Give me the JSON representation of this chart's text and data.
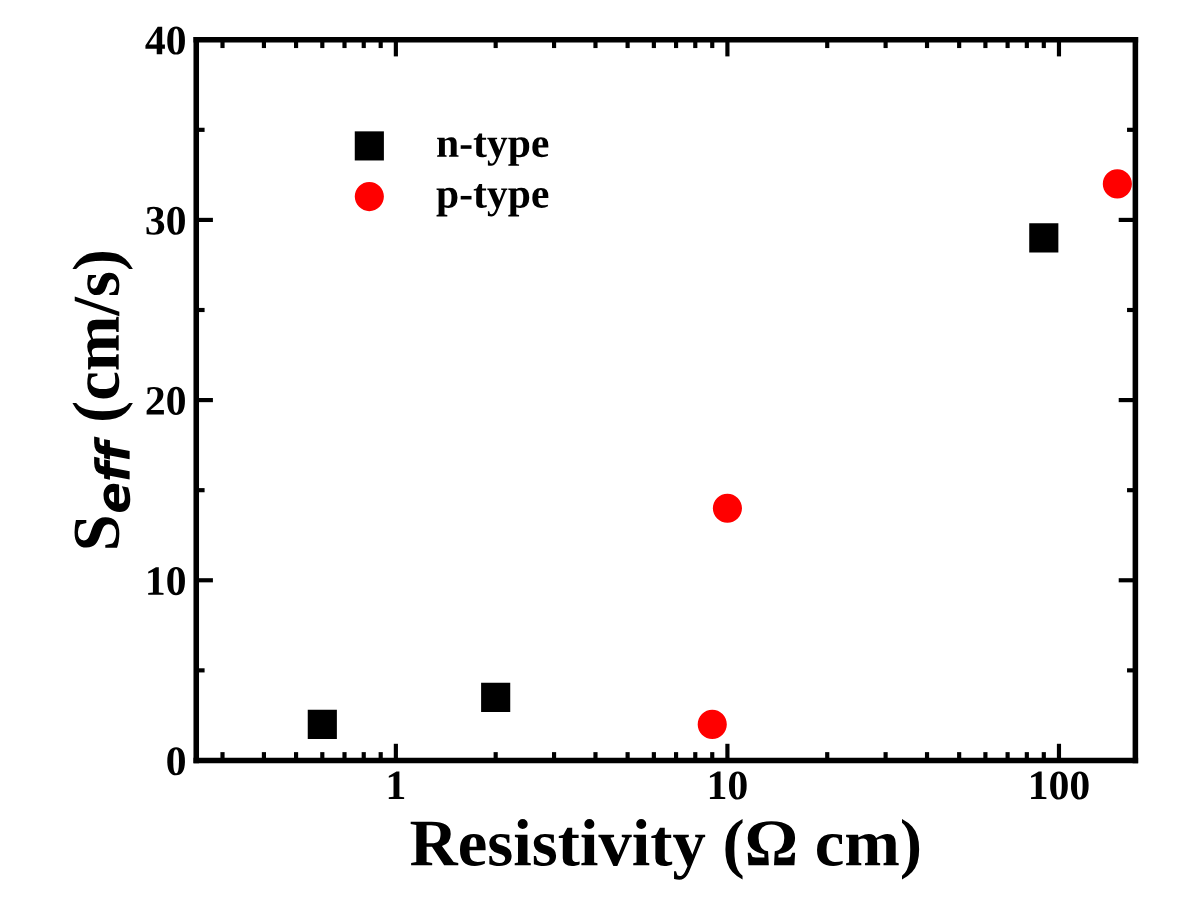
{
  "chart_data": {
    "type": "scatter",
    "xlabel": "Resistivity (Ω cm)",
    "ylabel": "S$_{eff}$ (cm/s)",
    "log": "x",
    "xlim": [
      0.25,
      170
    ],
    "xticks": [
      1,
      10,
      100
    ],
    "ylim": [
      0,
      40
    ],
    "yticks": [
      0,
      10,
      20,
      30,
      40
    ],
    "grid": false,
    "legend": "top left",
    "series": [
      {
        "name": "n-type",
        "color": "#000000",
        "marker": "square",
        "x": [
          0.6,
          2,
          90
        ],
        "values": [
          2,
          3.5,
          29
        ]
      },
      {
        "name": "p-type",
        "color": "#ff0000",
        "marker": "circle",
        "x": [
          9,
          10,
          150
        ],
        "values": [
          2,
          14,
          32
        ]
      }
    ]
  }
}
